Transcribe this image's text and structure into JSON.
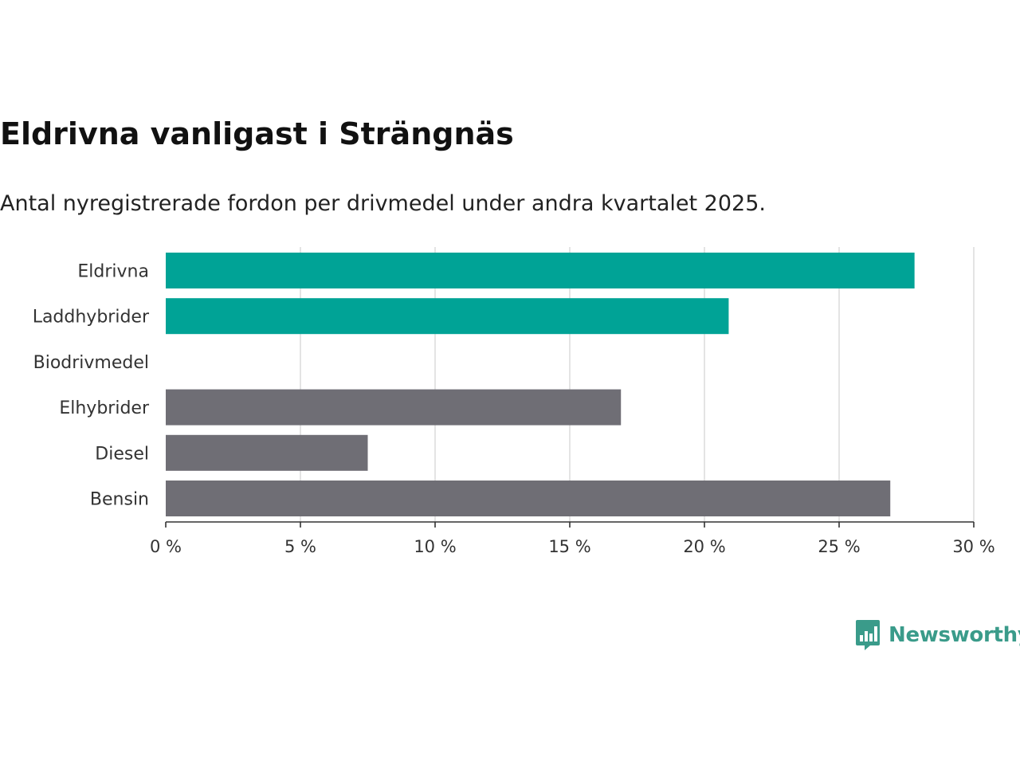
{
  "header": {
    "title": "Eldrivna vanligast i Strängnäs",
    "subtitle": "Antal nyregistrerade fordon per drivmedel under andra kvartalet 2025."
  },
  "brand": {
    "name": "Newsworthy",
    "icon": "bar-chart-speech-bubble-icon",
    "color": "#3a9b8a"
  },
  "chart_data": {
    "type": "bar",
    "orientation": "horizontal",
    "categories": [
      "Eldrivna",
      "Laddhybrider",
      "Biodrivmedel",
      "Elhybrider",
      "Diesel",
      "Bensin"
    ],
    "values": [
      27.8,
      20.9,
      0,
      16.9,
      7.5,
      26.9
    ],
    "bar_colors": [
      "#00a396",
      "#00a396",
      "#00a396",
      "#6f6e75",
      "#6f6e75",
      "#6f6e75"
    ],
    "xlim": [
      0,
      30
    ],
    "x_ticks": [
      0,
      5,
      10,
      15,
      20,
      25,
      30
    ],
    "x_tick_labels": [
      "0 %",
      "5 %",
      "10 %",
      "15 %",
      "20 %",
      "25 %",
      "30 %"
    ],
    "grid": true,
    "legend": "none"
  }
}
